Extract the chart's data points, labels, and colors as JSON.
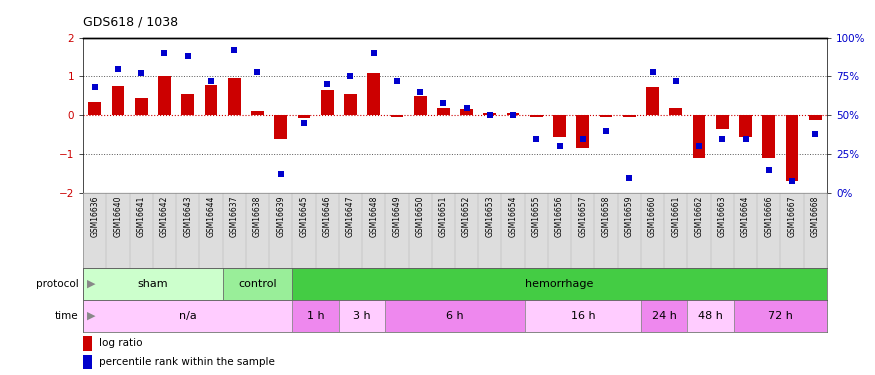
{
  "title": "GDS618 / 1038",
  "samples": [
    "GSM16636",
    "GSM16640",
    "GSM16641",
    "GSM16642",
    "GSM16643",
    "GSM16644",
    "GSM16637",
    "GSM16638",
    "GSM16639",
    "GSM16645",
    "GSM16646",
    "GSM16647",
    "GSM16648",
    "GSM16649",
    "GSM16650",
    "GSM16651",
    "GSM16652",
    "GSM16653",
    "GSM16654",
    "GSM16655",
    "GSM16656",
    "GSM16657",
    "GSM16658",
    "GSM16659",
    "GSM16660",
    "GSM16661",
    "GSM16662",
    "GSM16663",
    "GSM16664",
    "GSM16666",
    "GSM16667",
    "GSM16668"
  ],
  "log_ratio": [
    0.35,
    0.75,
    0.45,
    1.0,
    0.55,
    0.78,
    0.95,
    0.12,
    -0.62,
    -0.08,
    0.65,
    0.55,
    1.1,
    -0.05,
    0.5,
    0.2,
    0.15,
    0.05,
    0.05,
    -0.05,
    -0.55,
    -0.85,
    -0.05,
    -0.05,
    0.72,
    0.2,
    -1.1,
    -0.35,
    -0.55,
    -1.1,
    -1.7,
    -0.12
  ],
  "percentile": [
    68,
    80,
    77,
    90,
    88,
    72,
    92,
    78,
    12,
    45,
    70,
    75,
    90,
    72,
    65,
    58,
    55,
    50,
    50,
    35,
    30,
    35,
    40,
    10,
    78,
    72,
    30,
    35,
    35,
    15,
    8,
    38
  ],
  "protocol_groups": [
    {
      "label": "sham",
      "start": 0,
      "end": 6,
      "color": "#ccffcc"
    },
    {
      "label": "control",
      "start": 6,
      "end": 9,
      "color": "#99ee99"
    },
    {
      "label": "hemorrhage",
      "start": 9,
      "end": 32,
      "color": "#44cc44"
    }
  ],
  "time_groups": [
    {
      "label": "n/a",
      "start": 0,
      "end": 9,
      "color": "#ffccff"
    },
    {
      "label": "1 h",
      "start": 9,
      "end": 11,
      "color": "#ee88ee"
    },
    {
      "label": "3 h",
      "start": 11,
      "end": 13,
      "color": "#ffccff"
    },
    {
      "label": "6 h",
      "start": 13,
      "end": 19,
      "color": "#ee88ee"
    },
    {
      "label": "16 h",
      "start": 19,
      "end": 24,
      "color": "#ffccff"
    },
    {
      "label": "24 h",
      "start": 24,
      "end": 26,
      "color": "#ee88ee"
    },
    {
      "label": "48 h",
      "start": 26,
      "end": 28,
      "color": "#ffccff"
    },
    {
      "label": "72 h",
      "start": 28,
      "end": 32,
      "color": "#ee88ee"
    }
  ],
  "bar_color": "#cc0000",
  "dot_color": "#0000cc",
  "ylim": [
    -2,
    2
  ],
  "y2lim": [
    0,
    100
  ],
  "yticks": [
    -2,
    -1,
    0,
    1,
    2
  ],
  "y2ticks": [
    0,
    25,
    50,
    75,
    100
  ],
  "y2ticklabels": [
    "0%",
    "25%",
    "50%",
    "75%",
    "100%"
  ]
}
